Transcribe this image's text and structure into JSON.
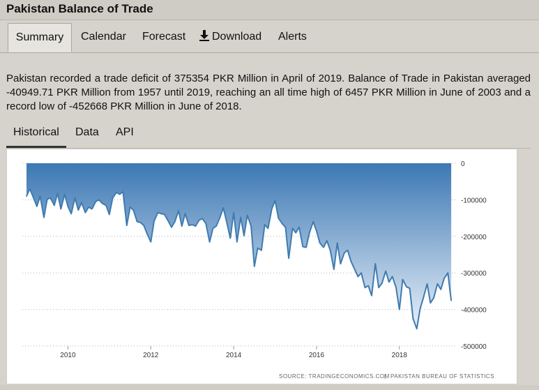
{
  "page": {
    "title": "Pakistan Balance of Trade"
  },
  "nav": {
    "tabs": [
      "Summary",
      "Calendar",
      "Forecast",
      "Download",
      "Alerts"
    ]
  },
  "summary": {
    "text": "Pakistan recorded a trade deficit of 375354 PKR Million in April of 2019. Balance of Trade in Pakistan averaged -40949.71 PKR Million from 1957 until 2019, reaching an all time high of 6457 PKR Million in June of 2003 and a record low of -452668 PKR Million in June of 2018."
  },
  "subnav": {
    "tabs": [
      "Historical",
      "Data",
      "API"
    ]
  },
  "chart": {
    "source_left": "SOURCE: TRADINGECONOMICS.COM",
    "separator": "|",
    "source_right": "PAKISTAN BUREAU OF STATISTICS"
  },
  "colors": {
    "line": "#3f7bb0",
    "fill_top": "#3c78b4",
    "fill_bottom": "#e8f0f8",
    "grid": "#b0b0b0"
  },
  "icons": {
    "download": "download-arrow-icon"
  },
  "chart_data": {
    "type": "area",
    "title": "",
    "xlabel": "",
    "ylabel": "",
    "xlim": [
      2009.0,
      2019.35
    ],
    "ylim": [
      -500000,
      0
    ],
    "x_ticks": [
      2010,
      2012,
      2014,
      2016,
      2018
    ],
    "x_tick_labels": [
      "2010",
      "2012",
      "2014",
      "2016",
      "2018"
    ],
    "y_ticks": [
      0,
      -100000,
      -200000,
      -300000,
      -400000,
      -500000
    ],
    "y_tick_labels": [
      "0",
      "-100000",
      "-200000",
      "-300000",
      "-400000",
      "-500000"
    ],
    "y_axis_position": "right",
    "grid": "horizontal dotted",
    "legend": "none",
    "series": [
      {
        "points": [
          [
            2009.0,
            -90000
          ],
          [
            2009.08,
            -70000
          ],
          [
            2009.17,
            -95000
          ],
          [
            2009.25,
            -118000
          ],
          [
            2009.33,
            -90000
          ],
          [
            2009.42,
            -148000
          ],
          [
            2009.5,
            -98000
          ],
          [
            2009.58,
            -95000
          ],
          [
            2009.67,
            -115000
          ],
          [
            2009.75,
            -82000
          ],
          [
            2009.83,
            -125000
          ],
          [
            2009.92,
            -85000
          ],
          [
            2010.0,
            -118000
          ],
          [
            2010.08,
            -138000
          ],
          [
            2010.17,
            -95000
          ],
          [
            2010.25,
            -128000
          ],
          [
            2010.33,
            -108000
          ],
          [
            2010.42,
            -135000
          ],
          [
            2010.5,
            -120000
          ],
          [
            2010.58,
            -125000
          ],
          [
            2010.67,
            -105000
          ],
          [
            2010.75,
            -100000
          ],
          [
            2010.83,
            -110000
          ],
          [
            2010.92,
            -115000
          ],
          [
            2011.0,
            -140000
          ],
          [
            2011.08,
            -95000
          ],
          [
            2011.17,
            -80000
          ],
          [
            2011.25,
            -85000
          ],
          [
            2011.33,
            -78000
          ],
          [
            2011.42,
            -170000
          ],
          [
            2011.5,
            -120000
          ],
          [
            2011.58,
            -128000
          ],
          [
            2011.67,
            -160000
          ],
          [
            2011.75,
            -162000
          ],
          [
            2011.83,
            -170000
          ],
          [
            2011.92,
            -195000
          ],
          [
            2012.0,
            -215000
          ],
          [
            2012.08,
            -158000
          ],
          [
            2012.17,
            -135000
          ],
          [
            2012.25,
            -138000
          ],
          [
            2012.33,
            -140000
          ],
          [
            2012.42,
            -158000
          ],
          [
            2012.5,
            -175000
          ],
          [
            2012.58,
            -160000
          ],
          [
            2012.67,
            -130000
          ],
          [
            2012.75,
            -172000
          ],
          [
            2012.83,
            -138000
          ],
          [
            2012.92,
            -170000
          ],
          [
            2013.0,
            -168000
          ],
          [
            2013.08,
            -172000
          ],
          [
            2013.17,
            -155000
          ],
          [
            2013.25,
            -152000
          ],
          [
            2013.33,
            -165000
          ],
          [
            2013.42,
            -215000
          ],
          [
            2013.5,
            -178000
          ],
          [
            2013.58,
            -172000
          ],
          [
            2013.67,
            -148000
          ],
          [
            2013.75,
            -122000
          ],
          [
            2013.83,
            -160000
          ],
          [
            2013.92,
            -205000
          ],
          [
            2014.0,
            -135000
          ],
          [
            2014.08,
            -215000
          ],
          [
            2014.17,
            -148000
          ],
          [
            2014.25,
            -198000
          ],
          [
            2014.33,
            -142000
          ],
          [
            2014.42,
            -172000
          ],
          [
            2014.5,
            -282000
          ],
          [
            2014.58,
            -232000
          ],
          [
            2014.67,
            -238000
          ],
          [
            2014.75,
            -168000
          ],
          [
            2014.83,
            -178000
          ],
          [
            2014.92,
            -125000
          ],
          [
            2015.0,
            -102000
          ],
          [
            2015.08,
            -150000
          ],
          [
            2015.17,
            -165000
          ],
          [
            2015.25,
            -175000
          ],
          [
            2015.33,
            -260000
          ],
          [
            2015.42,
            -178000
          ],
          [
            2015.5,
            -190000
          ],
          [
            2015.58,
            -175000
          ],
          [
            2015.67,
            -228000
          ],
          [
            2015.75,
            -230000
          ],
          [
            2015.83,
            -190000
          ],
          [
            2015.92,
            -160000
          ],
          [
            2016.0,
            -185000
          ],
          [
            2016.08,
            -218000
          ],
          [
            2016.17,
            -230000
          ],
          [
            2016.25,
            -212000
          ],
          [
            2016.33,
            -238000
          ],
          [
            2016.42,
            -290000
          ],
          [
            2016.5,
            -218000
          ],
          [
            2016.58,
            -275000
          ],
          [
            2016.67,
            -245000
          ],
          [
            2016.75,
            -238000
          ],
          [
            2016.83,
            -268000
          ],
          [
            2016.92,
            -290000
          ],
          [
            2017.0,
            -310000
          ],
          [
            2017.08,
            -300000
          ],
          [
            2017.17,
            -340000
          ],
          [
            2017.25,
            -335000
          ],
          [
            2017.33,
            -362000
          ],
          [
            2017.42,
            -275000
          ],
          [
            2017.5,
            -340000
          ],
          [
            2017.58,
            -328000
          ],
          [
            2017.67,
            -295000
          ],
          [
            2017.75,
            -325000
          ],
          [
            2017.83,
            -310000
          ],
          [
            2017.92,
            -340000
          ],
          [
            2018.0,
            -400000
          ],
          [
            2018.08,
            -318000
          ],
          [
            2018.17,
            -338000
          ],
          [
            2018.25,
            -342000
          ],
          [
            2018.33,
            -425000
          ],
          [
            2018.42,
            -452668
          ],
          [
            2018.5,
            -398000
          ],
          [
            2018.58,
            -368000
          ],
          [
            2018.67,
            -330000
          ],
          [
            2018.75,
            -382000
          ],
          [
            2018.83,
            -368000
          ],
          [
            2018.92,
            -330000
          ],
          [
            2019.0,
            -345000
          ],
          [
            2019.08,
            -315000
          ],
          [
            2019.17,
            -300000
          ],
          [
            2019.25,
            -375354
          ]
        ]
      }
    ],
    "source": "SOURCE: TRADINGECONOMICS.COM | PAKISTAN BUREAU OF STATISTICS"
  }
}
